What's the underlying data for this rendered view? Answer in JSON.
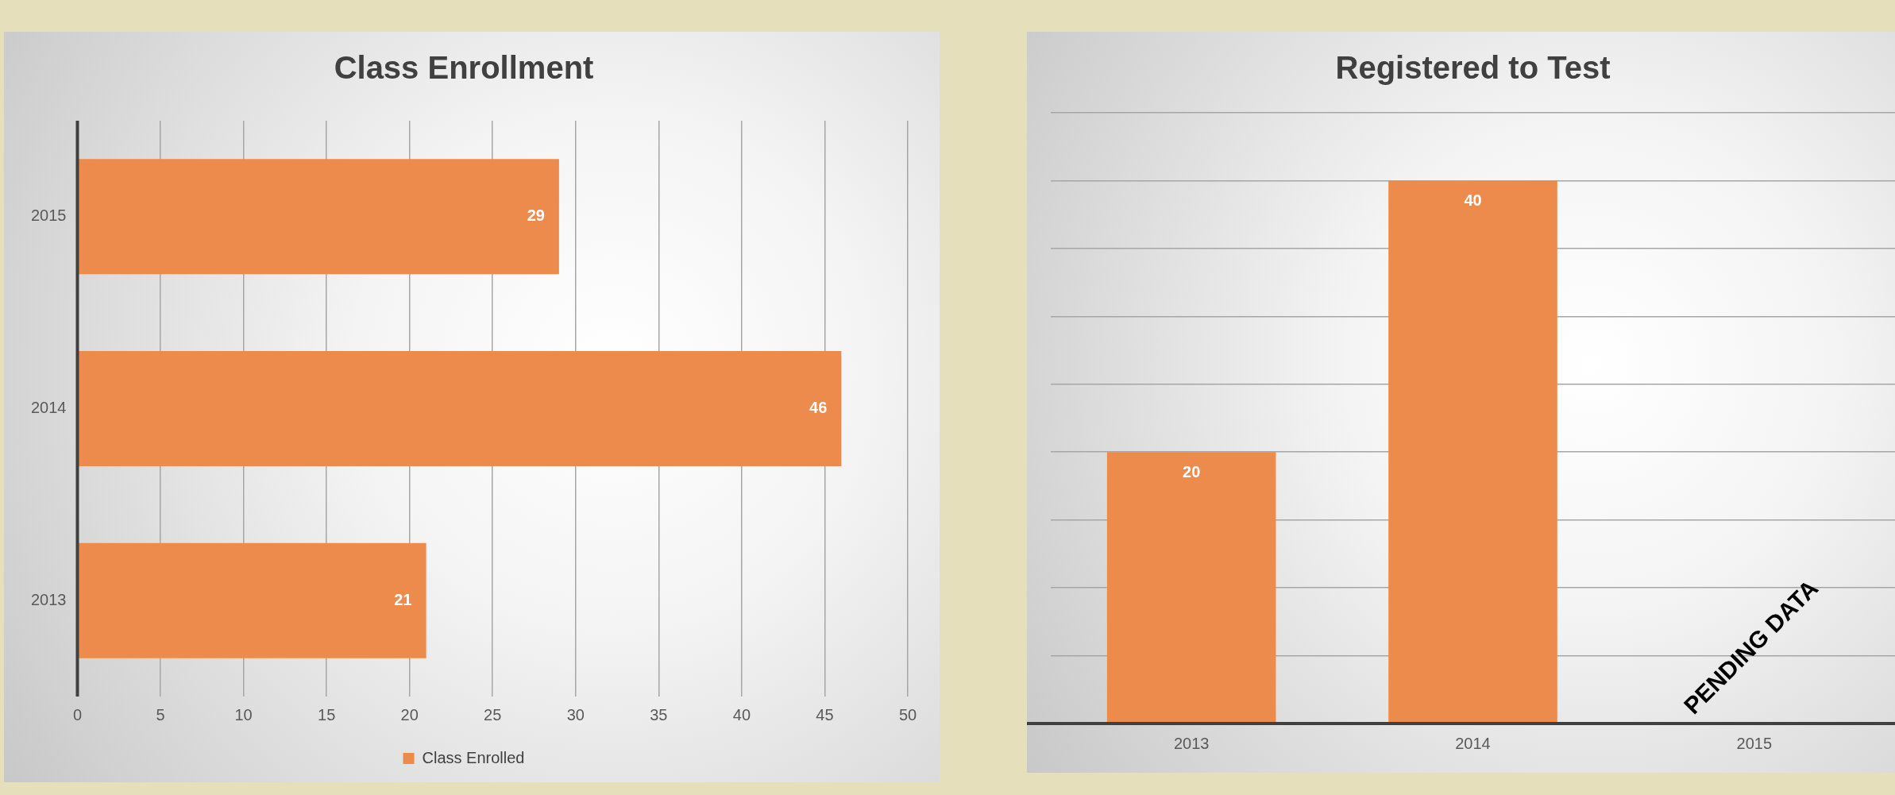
{
  "chart_data": [
    {
      "type": "bar",
      "title": "Class Enrollment",
      "orientation": "horizontal",
      "categories": [
        "2015",
        "2014",
        "2013"
      ],
      "series": [
        {
          "name": "Class Enrolled",
          "color": "#ed8b4c",
          "values": [
            29,
            46,
            21
          ]
        }
      ],
      "xlim": [
        0,
        50
      ],
      "xticks": [
        0,
        5,
        10,
        15,
        20,
        25,
        30,
        35,
        40,
        45,
        50
      ],
      "grid": "x",
      "legend": "bottom",
      "data_labels": true
    },
    {
      "type": "bar",
      "title": "Registered to Test",
      "categories": [
        "2013",
        "2014",
        "2015"
      ],
      "series": [
        {
          "color": "#ed8b4c",
          "values": [
            20,
            40,
            null
          ]
        }
      ],
      "ylim": [
        0,
        45
      ],
      "yticks": [
        0,
        5,
        10,
        15,
        20,
        25,
        30,
        35,
        40,
        45
      ],
      "grid": "y",
      "tick_labels": "x",
      "data_labels": true,
      "annotations": [
        "PENDING DATA"
      ]
    }
  ]
}
